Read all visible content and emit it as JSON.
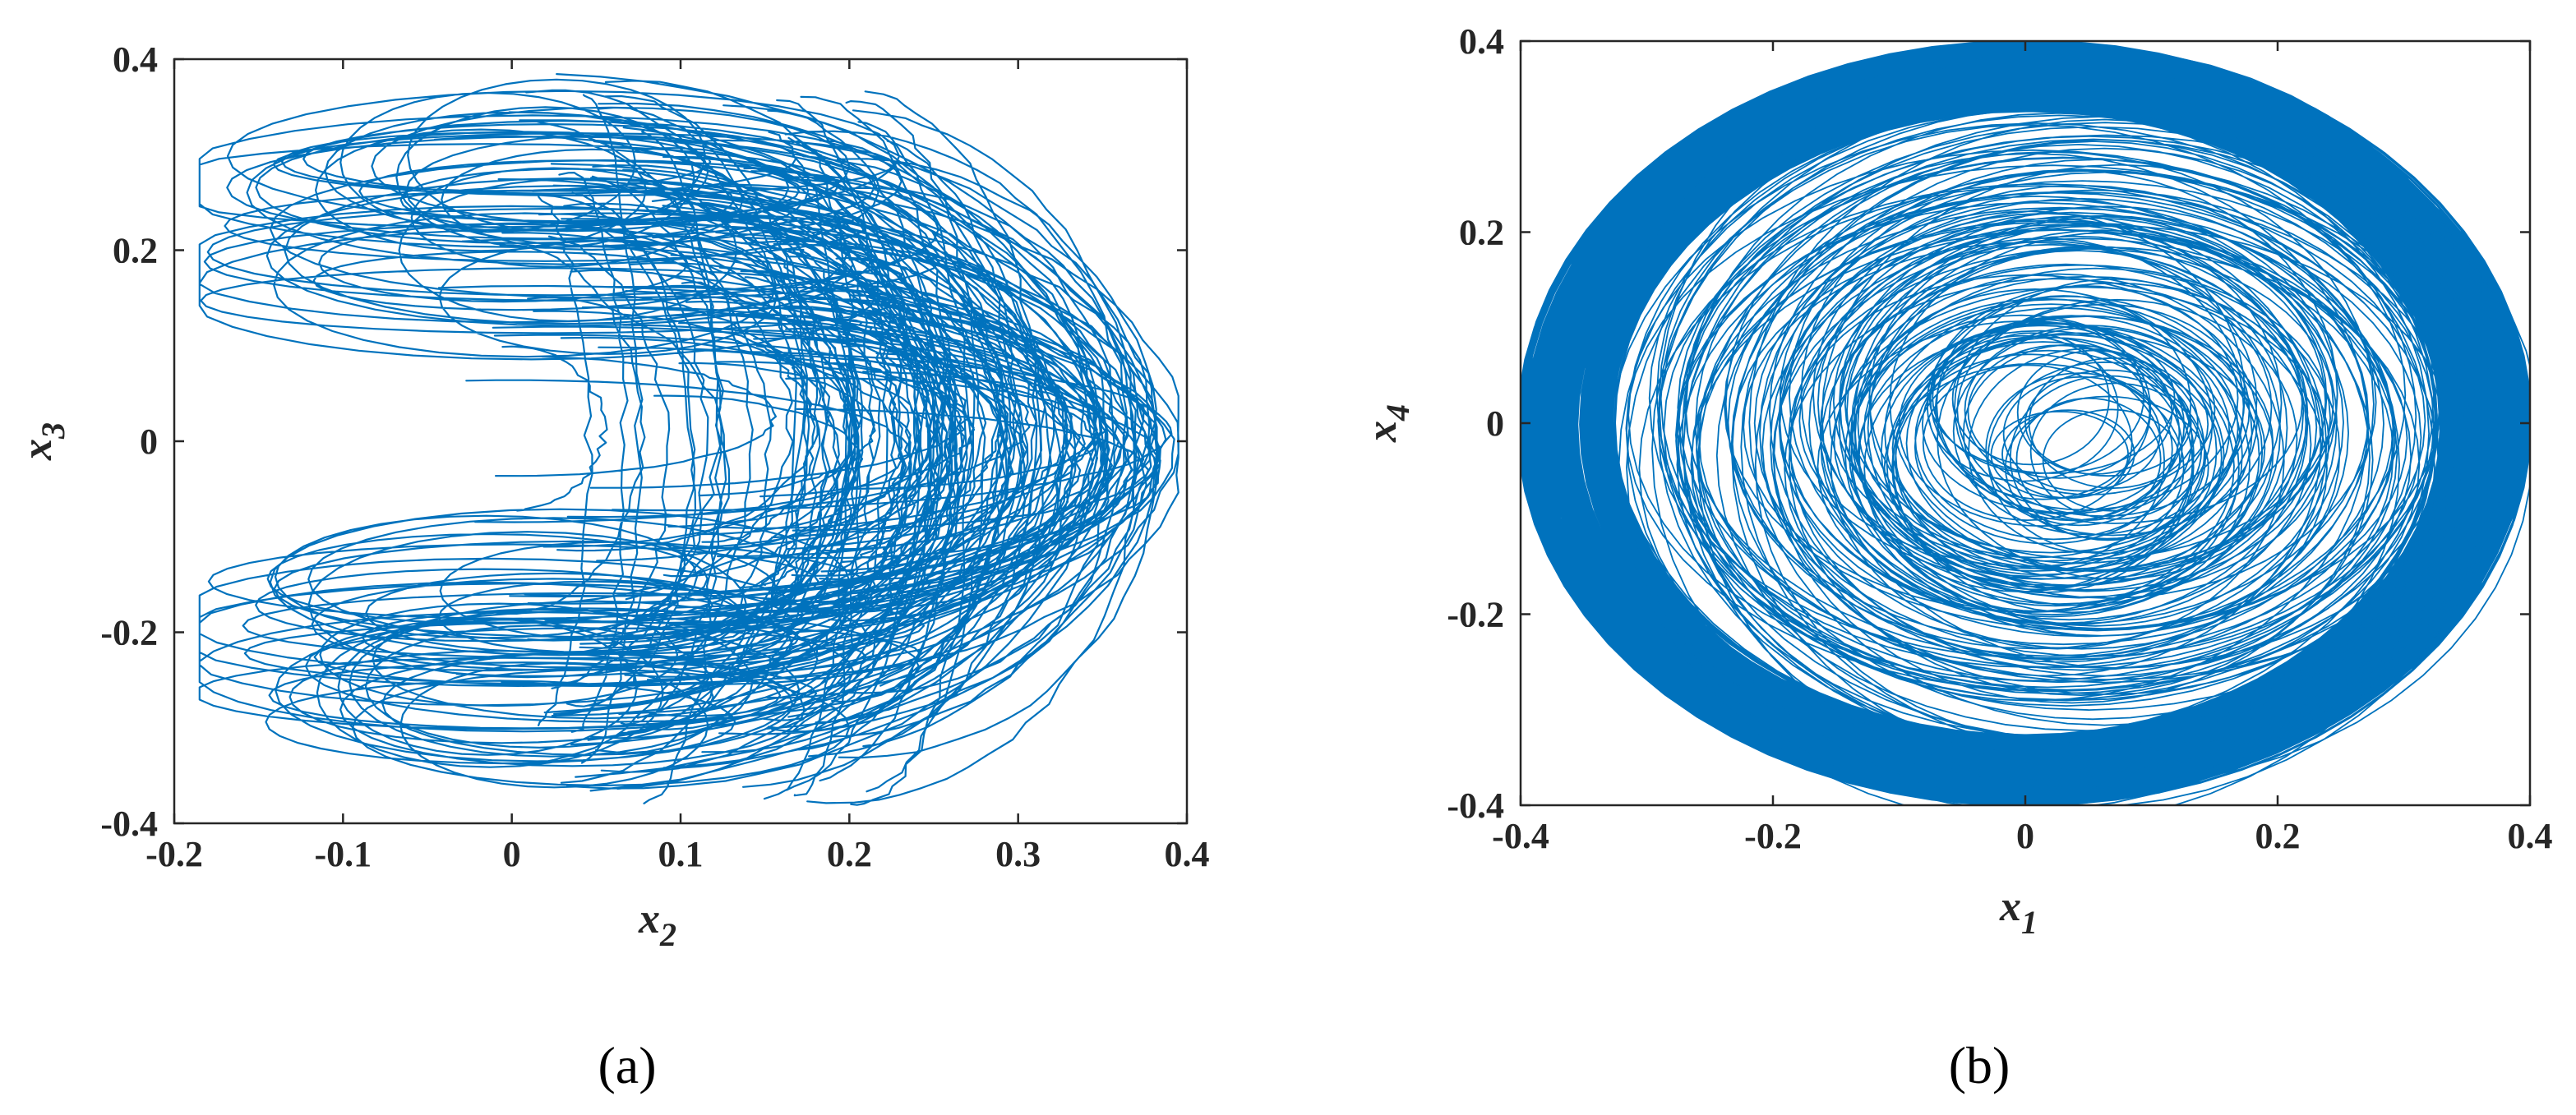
{
  "figure": {
    "panel_labels": [
      "(a)",
      "(b)"
    ]
  },
  "chart_data": [
    {
      "type": "line",
      "panel": "(a)",
      "title": "",
      "xlabel": "x",
      "xlabel_sub": "2",
      "ylabel": "x",
      "ylabel_sub": "3",
      "xlim": [
        -0.2,
        0.4
      ],
      "ylim": [
        -0.4,
        0.4
      ],
      "xticks": [
        -0.2,
        -0.1,
        0,
        0.1,
        0.2,
        0.3,
        0.4
      ],
      "yticks": [
        -0.4,
        -0.2,
        0,
        0.2,
        0.4
      ],
      "xtick_labels": [
        "-0.2",
        "-0.1",
        "0",
        "0.1",
        "0.2",
        "0.3",
        "0.4"
      ],
      "ytick_labels": [
        "-0.4",
        "-0.2",
        "0",
        "0.2",
        "0.4"
      ],
      "grid": false,
      "color": "#0072BD",
      "series": [
        {
          "description_visible": "phase portrait trajectory",
          "x": [
            0.0,
            0.05,
            0.03,
            -0.05,
            -0.15,
            -0.12,
            0.02,
            0.2,
            0.33,
            0.37,
            0.34,
            0.22,
            0.02,
            -0.14,
            -0.16,
            -0.05,
            0.1,
            0.25,
            0.35,
            0.37,
            0.3,
            0.12,
            -0.05,
            -0.12,
            -0.08,
            0.05,
            0.18,
            0.22
          ],
          "y": [
            0.04,
            0.0,
            -0.06,
            -0.1,
            -0.22,
            -0.32,
            -0.37,
            -0.33,
            -0.18,
            0.0,
            0.17,
            0.33,
            0.37,
            0.29,
            0.18,
            0.12,
            0.14,
            0.1,
            0.0,
            -0.12,
            -0.25,
            -0.33,
            -0.3,
            -0.2,
            -0.1,
            -0.05,
            0.0,
            0.02
          ]
        }
      ]
    },
    {
      "type": "line",
      "panel": "(b)",
      "title": "",
      "xlabel": "x",
      "xlabel_sub": "1",
      "ylabel": "x",
      "ylabel_sub": "4",
      "xlim": [
        -0.4,
        0.4
      ],
      "ylim": [
        -0.4,
        0.4
      ],
      "xticks": [
        -0.4,
        -0.2,
        0,
        0.2,
        0.4
      ],
      "yticks": [
        -0.4,
        -0.2,
        0,
        0.2,
        0.4
      ],
      "xtick_labels": [
        "-0.4",
        "-0.2",
        "0",
        "0.2",
        "0.4"
      ],
      "ytick_labels": [
        "-0.4",
        "-0.2",
        "0",
        "0.2",
        "0.4"
      ],
      "grid": false,
      "color": "#0072BD",
      "series": [
        {
          "description_visible": "phase portrait trajectory",
          "x": [
            0.4,
            0.28,
            0.0,
            -0.28,
            -0.4,
            -0.28,
            0.0,
            0.28,
            0.38,
            0.25,
            0.0,
            -0.25,
            -0.36,
            -0.22,
            0.02,
            0.2,
            0.15,
            0.05,
            0.0,
            0.06,
            0.12
          ],
          "y": [
            0.0,
            0.28,
            0.4,
            0.28,
            0.0,
            -0.28,
            -0.4,
            -0.28,
            0.0,
            0.24,
            0.33,
            0.22,
            0.0,
            -0.24,
            -0.3,
            -0.12,
            0.05,
            0.08,
            -0.02,
            -0.08,
            -0.02
          ]
        }
      ]
    }
  ]
}
